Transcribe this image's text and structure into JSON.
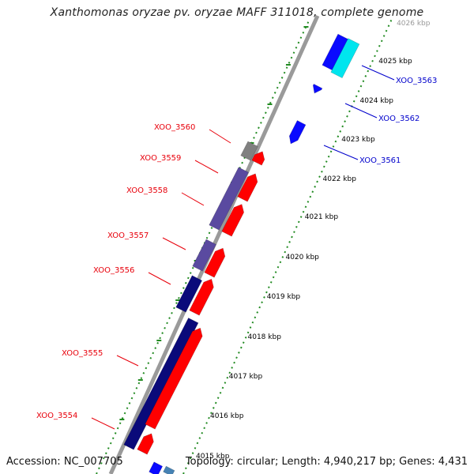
{
  "title": "Xanthomonas oryzae pv. oryzae MAFF 311018, complete genome",
  "footer": {
    "accession": "Accession: NC_007705",
    "summary": "Topology: circular; Length: 4,940,217 bp; Genes: 4,431"
  },
  "colors": {
    "label_left": "#e8000b",
    "label_right": "#0000cc",
    "axis": "#9a9a9a",
    "ticks": "#228b22",
    "gene_red": "#ff0000",
    "gene_navy": "#0a0a7a",
    "gene_purple": "#5a4aa0",
    "gene_gray": "#808080",
    "gene_blue": "#0a0aff",
    "gene_cyan": "#00e5ee",
    "gene_steel": "#4682b4"
  },
  "scale": {
    "ticks": [
      {
        "label": "4016 kbp",
        "color": "#000"
      },
      {
        "label": "4017 kbp",
        "color": "#000"
      },
      {
        "label": "4018 kbp",
        "color": "#000"
      },
      {
        "label": "4019 kbp",
        "color": "#000"
      },
      {
        "label": "4020 kbp",
        "color": "#000"
      },
      {
        "label": "4021 kbp",
        "color": "#000"
      },
      {
        "label": "4022 kbp",
        "color": "#000"
      },
      {
        "label": "4023 kbp",
        "color": "#000"
      },
      {
        "label": "4024 kbp",
        "color": "#000"
      },
      {
        "label": "4025 kbp",
        "color": "#000"
      },
      {
        "label": "4026 kbp",
        "color": "#999"
      }
    ],
    "partial_bottom_tick": "4015 kbp"
  },
  "gene_labels_left": [
    "XOO_3560",
    "XOO_3559",
    "XOO_3558",
    "XOO_3557",
    "XOO_3556",
    "XOO_3555",
    "XOO_3554"
  ],
  "gene_labels_right": [
    "XOO_3563",
    "XOO_3562",
    "XOO_3561"
  ]
}
